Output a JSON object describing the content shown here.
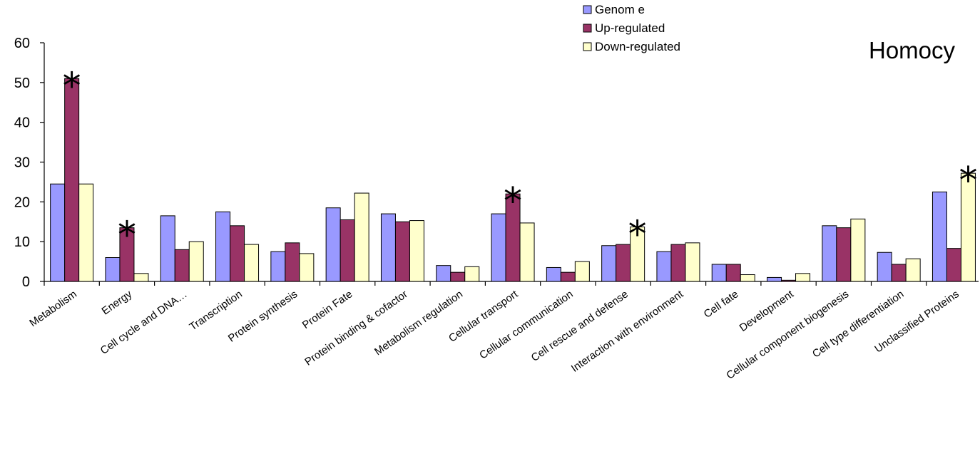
{
  "chart_data": {
    "type": "bar",
    "title": "Homocy",
    "xlabel": "",
    "ylabel": "",
    "ylim": [
      0,
      60
    ],
    "yticks": [
      0,
      10,
      20,
      30,
      40,
      50,
      60
    ],
    "grid": false,
    "legend_position": "top-right",
    "categories": [
      "Metabolism",
      "Energy",
      "Cell cycle and DNA…",
      "Transcription",
      "Protein synthesis",
      "Protein Fate",
      "Protein binding & cofactor",
      "Metabolism regulation",
      "Cellular transport",
      "Cellular communication",
      "Cell rescue and defense",
      "Interaction with environment",
      "Cell fate",
      "Development",
      "Cellular component biogenesis",
      "Cell type differentiation",
      "Unclassified Proteins"
    ],
    "series": [
      {
        "name": "Genom e",
        "color": "#9999FF",
        "values": [
          24.5,
          6,
          16.5,
          17.5,
          7.5,
          18.5,
          17,
          4,
          17,
          3.5,
          9,
          7.5,
          4.3,
          1,
          14,
          7.3,
          22.5
        ]
      },
      {
        "name": "Up-regulated",
        "color": "#993366",
        "values": [
          51,
          13.5,
          8,
          14,
          9.7,
          15.5,
          15,
          2.3,
          22,
          2.3,
          9.3,
          9.3,
          4.3,
          0.3,
          13.5,
          4.3,
          8.3
        ]
      },
      {
        "name": "Down-regulated",
        "color": "#FFFFCC",
        "values": [
          24.5,
          2,
          10,
          9.3,
          7,
          22.2,
          15.3,
          3.7,
          14.7,
          5,
          13.7,
          9.7,
          1.7,
          2,
          15.7,
          5.7,
          27.2
        ]
      }
    ],
    "annotations": [
      {
        "text": "*",
        "category_index": 0,
        "series_index": 1
      },
      {
        "text": "*",
        "category_index": 1,
        "series_index": 1
      },
      {
        "text": "*",
        "category_index": 8,
        "series_index": 1
      },
      {
        "text": "*",
        "category_index": 10,
        "series_index": 2
      },
      {
        "text": "*",
        "category_index": 16,
        "series_index": 2
      }
    ]
  }
}
